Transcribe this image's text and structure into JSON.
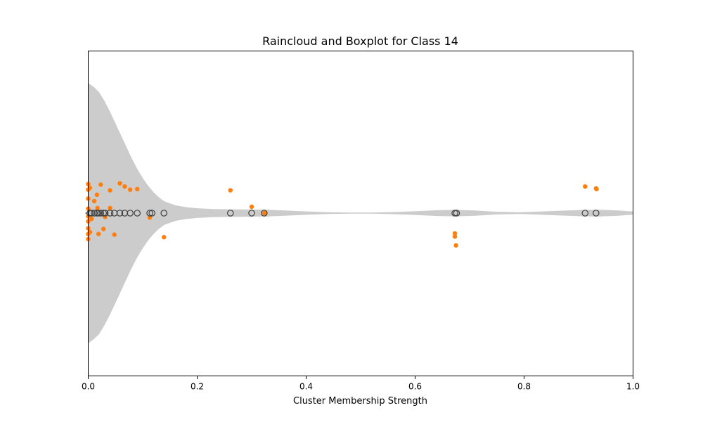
{
  "chart_data": {
    "type": "raincloud",
    "title": "Raincloud and Boxplot for Class 14",
    "xlabel": "Cluster Membership Strength",
    "ylabel": "",
    "xlim": [
      0.0,
      1.0
    ],
    "xticks": [
      0.0,
      0.2,
      0.4,
      0.6,
      0.8,
      1.0
    ],
    "xtick_labels": [
      "0.0",
      "0.2",
      "0.4",
      "0.6",
      "0.8",
      "1.0"
    ],
    "grid": false,
    "colors": {
      "violin": "#cccccc",
      "strip": "#ff7f0e",
      "flier_edge": "#3f3f3f",
      "box": "#3f3f3f"
    },
    "violin_profile": [
      {
        "x": 0.0,
        "w": 1.0
      },
      {
        "x": 0.01,
        "w": 0.97
      },
      {
        "x": 0.02,
        "w": 0.93
      },
      {
        "x": 0.03,
        "w": 0.86
      },
      {
        "x": 0.04,
        "w": 0.78
      },
      {
        "x": 0.05,
        "w": 0.69
      },
      {
        "x": 0.06,
        "w": 0.6
      },
      {
        "x": 0.07,
        "w": 0.51
      },
      {
        "x": 0.08,
        "w": 0.42
      },
      {
        "x": 0.09,
        "w": 0.34
      },
      {
        "x": 0.1,
        "w": 0.27
      },
      {
        "x": 0.11,
        "w": 0.21
      },
      {
        "x": 0.12,
        "w": 0.16
      },
      {
        "x": 0.13,
        "w": 0.12
      },
      {
        "x": 0.14,
        "w": 0.09
      },
      {
        "x": 0.16,
        "w": 0.06
      },
      {
        "x": 0.18,
        "w": 0.045
      },
      {
        "x": 0.2,
        "w": 0.037
      },
      {
        "x": 0.23,
        "w": 0.031
      },
      {
        "x": 0.26,
        "w": 0.029
      },
      {
        "x": 0.3,
        "w": 0.028
      },
      {
        "x": 0.33,
        "w": 0.026
      },
      {
        "x": 0.36,
        "w": 0.02
      },
      {
        "x": 0.4,
        "w": 0.013
      },
      {
        "x": 0.44,
        "w": 0.007
      },
      {
        "x": 0.48,
        "w": 0.004
      },
      {
        "x": 0.52,
        "w": 0.004
      },
      {
        "x": 0.56,
        "w": 0.008
      },
      {
        "x": 0.6,
        "w": 0.014
      },
      {
        "x": 0.64,
        "w": 0.022
      },
      {
        "x": 0.675,
        "w": 0.025
      },
      {
        "x": 0.71,
        "w": 0.02
      },
      {
        "x": 0.75,
        "w": 0.01
      },
      {
        "x": 0.79,
        "w": 0.007
      },
      {
        "x": 0.83,
        "w": 0.012
      },
      {
        "x": 0.87,
        "w": 0.019
      },
      {
        "x": 0.91,
        "w": 0.025
      },
      {
        "x": 0.94,
        "w": 0.026
      },
      {
        "x": 0.97,
        "w": 0.021
      },
      {
        "x": 1.0,
        "w": 0.012
      }
    ],
    "strip_points": [
      {
        "x": 0.0,
        "y": 0.46
      },
      {
        "x": 0.0,
        "y": 0.37
      },
      {
        "x": 0.0,
        "y": 0.23
      },
      {
        "x": 0.0,
        "y": 0.07
      },
      {
        "x": 0.0,
        "y": -0.05
      },
      {
        "x": 0.0,
        "y": -0.13
      },
      {
        "x": 0.0,
        "y": -0.24
      },
      {
        "x": 0.0,
        "y": -0.33
      },
      {
        "x": 0.0,
        "y": -0.41
      },
      {
        "x": 0.003,
        "y": 0.4
      },
      {
        "x": 0.003,
        "y": -0.3
      },
      {
        "x": 0.006,
        "y": -0.09
      },
      {
        "x": 0.011,
        "y": 0.19
      },
      {
        "x": 0.016,
        "y": 0.29
      },
      {
        "x": 0.017,
        "y": 0.08
      },
      {
        "x": 0.019,
        "y": -0.33
      },
      {
        "x": 0.023,
        "y": 0.45
      },
      {
        "x": 0.028,
        "y": -0.25
      },
      {
        "x": 0.031,
        "y": -0.06
      },
      {
        "x": 0.04,
        "y": 0.36
      },
      {
        "x": 0.04,
        "y": 0.08
      },
      {
        "x": 0.048,
        "y": -0.34
      },
      {
        "x": 0.058,
        "y": 0.47
      },
      {
        "x": 0.067,
        "y": 0.42
      },
      {
        "x": 0.077,
        "y": 0.37
      },
      {
        "x": 0.09,
        "y": 0.38
      },
      {
        "x": 0.113,
        "y": -0.07
      },
      {
        "x": 0.139,
        "y": -0.38
      },
      {
        "x": 0.261,
        "y": 0.36
      },
      {
        "x": 0.3,
        "y": 0.1
      },
      {
        "x": 0.323,
        "y": 0.0
      },
      {
        "x": 0.324,
        "y": 0.0
      },
      {
        "x": 0.673,
        "y": -0.32
      },
      {
        "x": 0.673,
        "y": -0.37
      },
      {
        "x": 0.675,
        "y": -0.51
      },
      {
        "x": 0.912,
        "y": 0.42
      },
      {
        "x": 0.932,
        "y": 0.39
      },
      {
        "x": 0.933,
        "y": 0.38
      }
    ],
    "box": {
      "q1": 0.0,
      "median": 0.0,
      "q3": 0.0,
      "whisker_low": 0.0,
      "whisker_high": 0.0
    },
    "outliers": [
      0.003,
      0.006,
      0.011,
      0.016,
      0.019,
      0.023,
      0.028,
      0.031,
      0.04,
      0.048,
      0.058,
      0.067,
      0.077,
      0.09,
      0.113,
      0.117,
      0.139,
      0.261,
      0.3,
      0.323,
      0.673,
      0.676,
      0.912,
      0.932
    ]
  }
}
